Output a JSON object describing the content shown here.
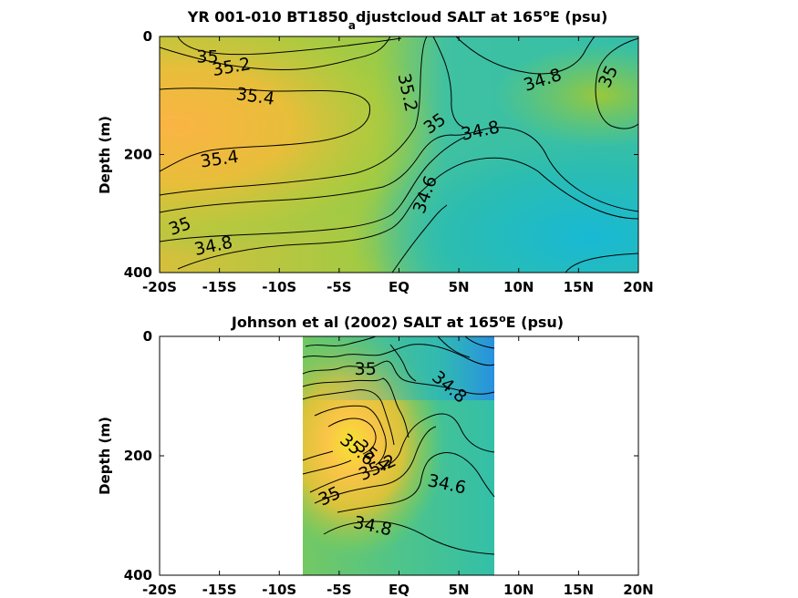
{
  "chart_data": [
    {
      "type": "contour",
      "title_main": "YR 001-010 BT1850",
      "title_sub": "a",
      "title_rest": "djustcloud SALT at 165",
      "title_sup": "o",
      "title_end": "E (psu)",
      "ylabel": "Depth (m)",
      "xticks": [
        "-20S",
        "-15S",
        "-10S",
        "-5S",
        "EQ",
        "5N",
        "10N",
        "15N",
        "20N"
      ],
      "yticks": [
        "0",
        "200",
        "400"
      ],
      "xlim": [
        -20,
        20
      ],
      "ylim": [
        0,
        400
      ],
      "contour_labels": [
        {
          "text": "35",
          "x": -16,
          "y": 35,
          "rot": 0
        },
        {
          "text": "35.2",
          "x": -14,
          "y": 52,
          "rot": -10
        },
        {
          "text": "35.4",
          "x": -12,
          "y": 102,
          "rot": 8
        },
        {
          "text": "35.2",
          "x": 0.7,
          "y": 95,
          "rot": 78
        },
        {
          "text": "34.8",
          "x": 12,
          "y": 74,
          "rot": -18
        },
        {
          "text": "35",
          "x": 17.5,
          "y": 68,
          "rot": -65
        },
        {
          "text": "35",
          "x": 3,
          "y": 148,
          "rot": -35
        },
        {
          "text": "34.8",
          "x": 6.8,
          "y": 160,
          "rot": -12
        },
        {
          "text": "35.4",
          "x": -15,
          "y": 208,
          "rot": -8
        },
        {
          "text": "34.6",
          "x": 2.2,
          "y": 268,
          "rot": -70
        },
        {
          "text": "35",
          "x": -18.3,
          "y": 322,
          "rot": -20
        },
        {
          "text": "34.8",
          "x": -15.5,
          "y": 355,
          "rot": -12
        }
      ]
    },
    {
      "type": "contour",
      "title_main": "Johnson et al (2002) SALT at 165",
      "title_sup": "o",
      "title_end": "E (psu)",
      "ylabel": "Depth (m)",
      "xticks": [
        "-20S",
        "-15S",
        "-10S",
        "-5S",
        "EQ",
        "5N",
        "10N",
        "15N",
        "20N"
      ],
      "yticks": [
        "0",
        "200",
        "400"
      ],
      "xlim": [
        -20,
        20
      ],
      "ylim": [
        0,
        400
      ],
      "data_extent_x": [
        -8,
        8
      ],
      "contour_labels": [
        {
          "text": "35",
          "x": -2.8,
          "y": 55,
          "rot": 0
        },
        {
          "text": "34.8",
          "x": 4.2,
          "y": 85,
          "rot": 40
        },
        {
          "text": "35.6",
          "x": -3.5,
          "y": 190,
          "rot": 40
        },
        {
          "text": "35.4",
          "x": -2.2,
          "y": 200,
          "rot": 40
        },
        {
          "text": "35.2",
          "x": -1.8,
          "y": 220,
          "rot": -25
        },
        {
          "text": "35",
          "x": -5.8,
          "y": 268,
          "rot": -25
        },
        {
          "text": "34.6",
          "x": 4,
          "y": 248,
          "rot": 12
        },
        {
          "text": "34.8",
          "x": -2.2,
          "y": 318,
          "rot": 12
        }
      ]
    }
  ]
}
